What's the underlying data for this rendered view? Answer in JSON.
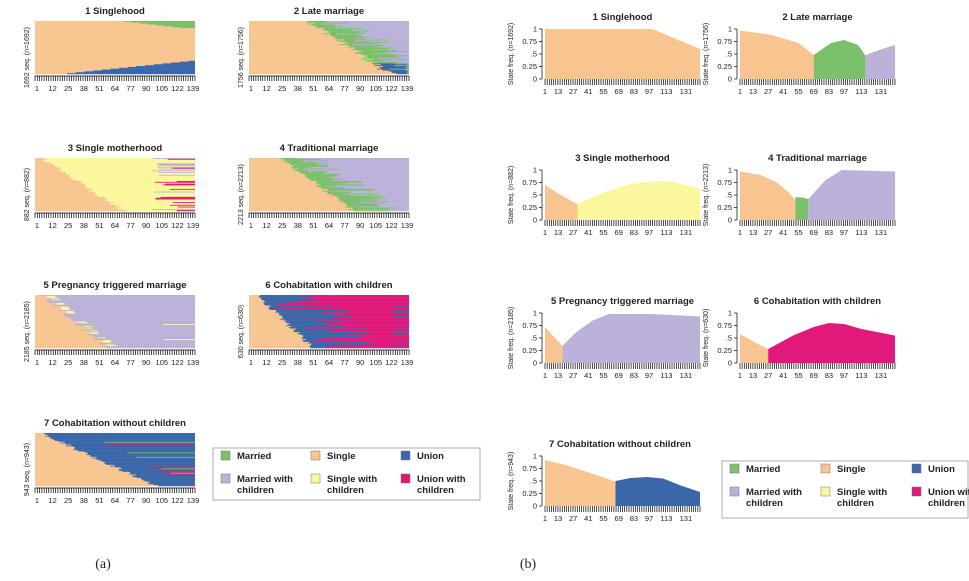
{
  "figure": {
    "panel_a_caption": "(a)",
    "panel_b_caption": "(b)"
  },
  "colors": {
    "Married": "#7bc06b",
    "Single": "#f8c590",
    "Union": "#3a66aa",
    "Married with children": "#bcb1d8",
    "Single with children": "#fbf79c",
    "Union with children": "#e0197a"
  },
  "legend": [
    {
      "state": "Married",
      "label": "Married",
      "color": "#7bc06b"
    },
    {
      "state": "Single",
      "label": "Single",
      "color": "#f8c590"
    },
    {
      "state": "Union",
      "label": "Union",
      "color": "#3a66aa"
    },
    {
      "state": "Married with children",
      "label": "Married with children",
      "color": "#bcb1d8"
    },
    {
      "state": "Single with children",
      "label": "Single with children",
      "color": "#fbf79c"
    },
    {
      "state": "Union with children",
      "label": "Union with children",
      "color": "#e0197a"
    }
  ],
  "chart_data": [
    {
      "type": "area",
      "panel": "a",
      "subtype": "sequence-index-plot",
      "x_ticks": [
        "1",
        "12",
        "25",
        "38",
        "51",
        "64",
        "77",
        "90",
        "105",
        "122",
        "139"
      ],
      "clusters": [
        {
          "title": "1 Singlehood",
          "ylabel": "1692 seq. (n=1692)",
          "dominant": [
            "Single",
            "Union",
            "Married"
          ]
        },
        {
          "title": "2 Late marriage",
          "ylabel": "1756 seq. (n=1756)",
          "dominant": [
            "Single",
            "Married",
            "Married with children"
          ]
        },
        {
          "title": "3 Single motherhood",
          "ylabel": "882 seq. (n=882)",
          "dominant": [
            "Single",
            "Single with children"
          ]
        },
        {
          "title": "4 Traditional marriage",
          "ylabel": "2213 seq. (n=2213)",
          "dominant": [
            "Single",
            "Married",
            "Married with children"
          ]
        },
        {
          "title": "5 Pregnancy triggered marriage",
          "ylabel": "2185 seq. (n=2185)",
          "dominant": [
            "Single",
            "Married with children"
          ]
        },
        {
          "title": "6 Cohabitation with children",
          "ylabel": "630 seq. (n=630)",
          "dominant": [
            "Union with children",
            "Union",
            "Single"
          ]
        },
        {
          "title": "7 Cohabitation without children",
          "ylabel": "943 seq. (n=943)",
          "dominant": [
            "Single",
            "Union"
          ]
        }
      ]
    },
    {
      "type": "area",
      "panel": "b",
      "subtype": "modal-state-plot",
      "x_ticks": [
        "1",
        "13",
        "27",
        "41",
        "55",
        "69",
        "83",
        "97",
        "113",
        "131"
      ],
      "x_range": [
        1,
        144
      ],
      "y_ticks": [
        "0",
        "0.25",
        ".5",
        "0.75",
        "1"
      ],
      "ylim": [
        0,
        1
      ],
      "clusters": [
        {
          "title": "1 Singlehood",
          "ylabel": "State freq. (n=1692)",
          "segments": [
            {
              "state": "Single",
              "x": [
                1,
                100,
                144
              ],
              "y": [
                1,
                1,
                0.6
              ]
            }
          ]
        },
        {
          "title": "2 Late marriage",
          "ylabel": "State freq. (n=1756)",
          "segments": [
            {
              "state": "Single",
              "x": [
                1,
                30,
                55,
                69
              ],
              "y": [
                0.97,
                0.88,
                0.72,
                0.48
              ]
            },
            {
              "state": "Married",
              "x": [
                69,
                85,
                97,
                110,
                117
              ],
              "y": [
                0.48,
                0.72,
                0.78,
                0.68,
                0.46
              ]
            },
            {
              "state": "Married with children",
              "x": [
                117,
                132,
                144
              ],
              "y": [
                0.48,
                0.6,
                0.68
              ]
            }
          ]
        },
        {
          "title": "3 Single motherhood",
          "ylabel": "State freq. (n=882)",
          "segments": [
            {
              "state": "Single",
              "x": [
                1,
                14,
                27,
                31
              ],
              "y": [
                0.7,
                0.52,
                0.36,
                0.32
              ]
            },
            {
              "state": "Single with children",
              "x": [
                31,
                55,
                80,
                105,
                120,
                144
              ],
              "y": [
                0.32,
                0.55,
                0.72,
                0.78,
                0.76,
                0.62
              ]
            }
          ]
        },
        {
          "title": "4 Traditional marriage",
          "ylabel": "State freq. (n=2213)",
          "segments": [
            {
              "state": "Single",
              "x": [
                1,
                20,
                35,
                46,
                52
              ],
              "y": [
                0.97,
                0.9,
                0.75,
                0.55,
                0.4
              ]
            },
            {
              "state": "Married",
              "x": [
                52,
                58,
                64
              ],
              "y": [
                0.46,
                0.45,
                0.42
              ]
            },
            {
              "state": "Married with children",
              "x": [
                64,
                80,
                95,
                144
              ],
              "y": [
                0.42,
                0.8,
                1,
                0.97
              ]
            }
          ]
        },
        {
          "title": "5 Pregnancy triggered marriage",
          "ylabel": "State freq. (n=2185)",
          "segments": [
            {
              "state": "Single",
              "x": [
                1,
                8,
                17
              ],
              "y": [
                0.72,
                0.55,
                0.34
              ]
            },
            {
              "state": "Married with children",
              "x": [
                17,
                30,
                45,
                60,
                100,
                144
              ],
              "y": [
                0.34,
                0.62,
                0.85,
                0.98,
                0.98,
                0.93
              ]
            }
          ]
        },
        {
          "title": "6 Cohabitation with children",
          "ylabel": "State freq. (n=630)",
          "segments": [
            {
              "state": "Single",
              "x": [
                1,
                14,
                27
              ],
              "y": [
                0.58,
                0.42,
                0.28
              ]
            },
            {
              "state": "Union with children",
              "x": [
                27,
                50,
                69,
                83,
                97,
                113,
                144
              ],
              "y": [
                0.28,
                0.55,
                0.72,
                0.8,
                0.78,
                0.68,
                0.55
              ]
            }
          ]
        },
        {
          "title": "7 Cohabitation without children",
          "ylabel": "State freq. (n=943)",
          "segments": [
            {
              "state": "Single",
              "x": [
                1,
                20,
                40,
                58,
                66
              ],
              "y": [
                0.92,
                0.82,
                0.68,
                0.55,
                0.48
              ]
            },
            {
              "state": "Union",
              "x": [
                66,
                80,
                95,
                110,
                125,
                144
              ],
              "y": [
                0.5,
                0.56,
                0.58,
                0.55,
                0.42,
                0.28
              ]
            }
          ]
        }
      ]
    }
  ]
}
